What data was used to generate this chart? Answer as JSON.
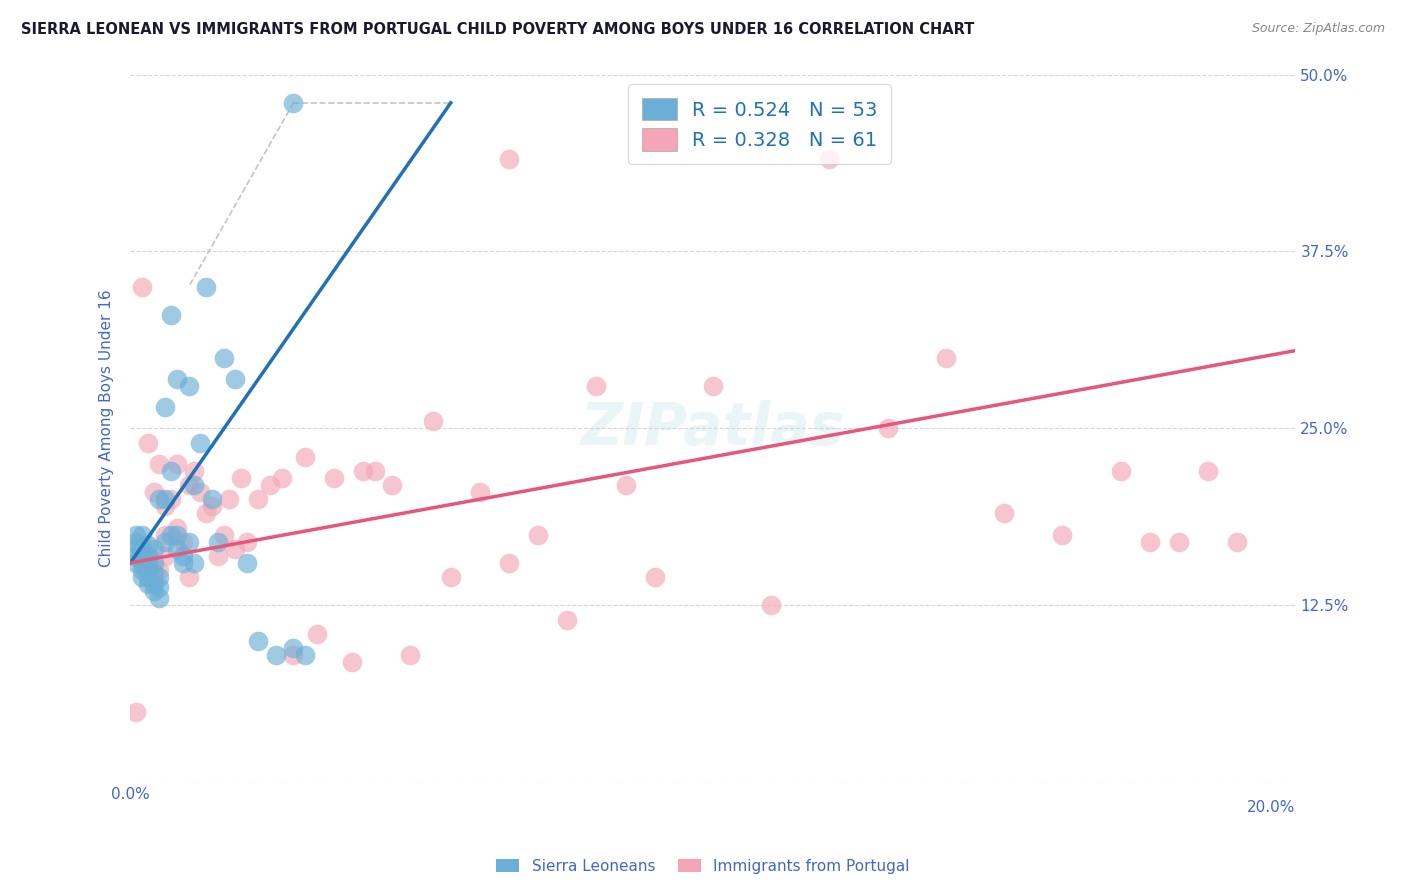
{
  "title": "SIERRA LEONEAN VS IMMIGRANTS FROM PORTUGAL CHILD POVERTY AMONG BOYS UNDER 16 CORRELATION CHART",
  "source": "Source: ZipAtlas.com",
  "ylabel": "Child Poverty Among Boys Under 16",
  "xlim": [
    0.0,
    0.2
  ],
  "ylim": [
    0.0,
    0.5
  ],
  "xticks": [
    0.0,
    0.025,
    0.05,
    0.075,
    0.1,
    0.125,
    0.15,
    0.175,
    0.2
  ],
  "yticks": [
    0.0,
    0.125,
    0.25,
    0.375,
    0.5
  ],
  "blue_color": "#6baed6",
  "pink_color": "#f4a6b8",
  "blue_line_color": "#2171b5",
  "pink_line_color": "#e8567a",
  "legend_R1": "R = 0.524",
  "legend_N1": "N = 53",
  "legend_R2": "R = 0.328",
  "legend_N2": "N = 61",
  "legend_label1": "Sierra Leoneans",
  "legend_label2": "Immigrants from Portugal",
  "blue_line_x0": 0.0,
  "blue_line_y0": 0.155,
  "blue_line_x1": 0.055,
  "blue_line_y1": 0.48,
  "pink_line_x0": 0.0,
  "pink_line_y0": 0.155,
  "pink_line_x1": 0.2,
  "pink_line_y1": 0.305,
  "dash_line_x0": 0.028,
  "dash_line_y0": 0.48,
  "dash_line_x1": 0.055,
  "dash_line_y1": 0.48,
  "blue_scatter_x": [
    0.001,
    0.001,
    0.001,
    0.001,
    0.001,
    0.002,
    0.002,
    0.002,
    0.002,
    0.002,
    0.002,
    0.003,
    0.003,
    0.003,
    0.003,
    0.003,
    0.003,
    0.004,
    0.004,
    0.004,
    0.004,
    0.004,
    0.005,
    0.005,
    0.005,
    0.005,
    0.006,
    0.006,
    0.006,
    0.007,
    0.007,
    0.007,
    0.008,
    0.008,
    0.008,
    0.009,
    0.009,
    0.01,
    0.01,
    0.011,
    0.011,
    0.012,
    0.013,
    0.014,
    0.015,
    0.016,
    0.018,
    0.02,
    0.022,
    0.025,
    0.028,
    0.03,
    0.028
  ],
  "blue_scatter_y": [
    0.155,
    0.16,
    0.165,
    0.17,
    0.175,
    0.145,
    0.15,
    0.155,
    0.16,
    0.165,
    0.175,
    0.14,
    0.145,
    0.15,
    0.155,
    0.16,
    0.168,
    0.135,
    0.14,
    0.148,
    0.155,
    0.165,
    0.13,
    0.138,
    0.145,
    0.2,
    0.17,
    0.2,
    0.265,
    0.175,
    0.22,
    0.33,
    0.165,
    0.175,
    0.285,
    0.155,
    0.16,
    0.17,
    0.28,
    0.155,
    0.21,
    0.24,
    0.35,
    0.2,
    0.17,
    0.3,
    0.285,
    0.155,
    0.1,
    0.09,
    0.095,
    0.09,
    0.48
  ],
  "pink_scatter_x": [
    0.001,
    0.002,
    0.002,
    0.003,
    0.003,
    0.004,
    0.005,
    0.005,
    0.006,
    0.006,
    0.006,
    0.007,
    0.008,
    0.008,
    0.009,
    0.01,
    0.01,
    0.011,
    0.012,
    0.013,
    0.014,
    0.015,
    0.016,
    0.017,
    0.018,
    0.019,
    0.02,
    0.022,
    0.024,
    0.026,
    0.028,
    0.03,
    0.032,
    0.035,
    0.038,
    0.04,
    0.042,
    0.045,
    0.048,
    0.052,
    0.055,
    0.06,
    0.065,
    0.07,
    0.075,
    0.08,
    0.085,
    0.09,
    0.1,
    0.11,
    0.12,
    0.13,
    0.14,
    0.15,
    0.16,
    0.17,
    0.175,
    0.18,
    0.185,
    0.19,
    0.065
  ],
  "pink_scatter_y": [
    0.05,
    0.35,
    0.16,
    0.24,
    0.16,
    0.205,
    0.225,
    0.15,
    0.195,
    0.16,
    0.175,
    0.2,
    0.18,
    0.225,
    0.17,
    0.21,
    0.145,
    0.22,
    0.205,
    0.19,
    0.195,
    0.16,
    0.175,
    0.2,
    0.165,
    0.215,
    0.17,
    0.2,
    0.21,
    0.215,
    0.09,
    0.23,
    0.105,
    0.215,
    0.085,
    0.22,
    0.22,
    0.21,
    0.09,
    0.255,
    0.145,
    0.205,
    0.155,
    0.175,
    0.115,
    0.28,
    0.21,
    0.145,
    0.28,
    0.125,
    0.44,
    0.25,
    0.3,
    0.19,
    0.175,
    0.22,
    0.17,
    0.17,
    0.22,
    0.17,
    0.44
  ],
  "background_color": "#ffffff",
  "grid_color": "#cccccc",
  "title_color": "#1a1a2e",
  "axis_label_color": "#4466cc",
  "tick_label_color": "#4466cc"
}
